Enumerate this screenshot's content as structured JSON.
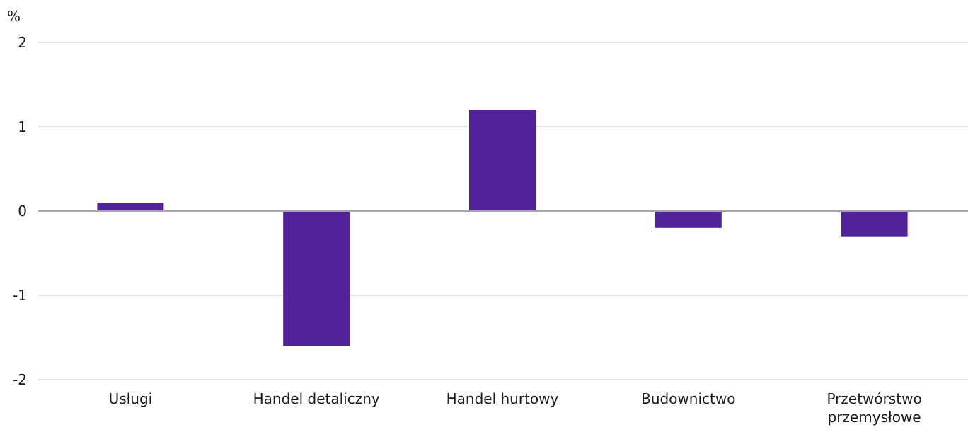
{
  "chart_data": {
    "type": "bar",
    "ylabel": "%",
    "categories": [
      [
        "Usługi"
      ],
      [
        "Handel detaliczny"
      ],
      [
        "Handel hurtowy"
      ],
      [
        "Budownictwo"
      ],
      [
        "Przetwórstwo",
        "przemysłowe"
      ]
    ],
    "series": [
      {
        "values": [
          0.1,
          -1.6,
          1.2,
          -0.2,
          -0.3
        ]
      }
    ],
    "ylim": [
      -2,
      2
    ],
    "yticks": [
      2,
      1,
      0,
      -1,
      -2
    ],
    "grid": true,
    "legend": "none",
    "bar_color": "#51239a"
  }
}
